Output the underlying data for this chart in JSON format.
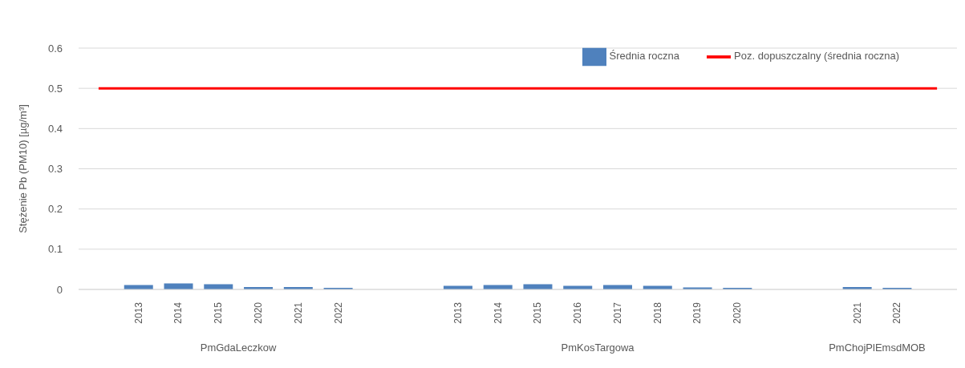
{
  "chart_data": {
    "type": "bar",
    "ylabel": "Stężenie Pb (PM10) [µg/m³]",
    "categories": [
      null,
      "2013",
      "2014",
      "2015",
      "2020",
      "2021",
      "2022",
      null,
      null,
      "2013",
      "2014",
      "2015",
      "2016",
      "2017",
      "2018",
      "2019",
      "2020",
      null,
      null,
      "2021",
      "2022",
      null
    ],
    "series": [
      {
        "name": "Średnia roczna",
        "color": "#4f81bd",
        "values": [
          null,
          0.011,
          0.015,
          0.013,
          0.006,
          0.006,
          0.004,
          null,
          null,
          0.009,
          0.011,
          0.013,
          0.009,
          0.011,
          0.009,
          0.005,
          0.004,
          null,
          null,
          0.006,
          0.004,
          null
        ]
      },
      {
        "name": "Poz. dopuszczalny (średnia roczna)",
        "type": "line",
        "color": "#ff0000",
        "values": [
          0.5,
          0.5,
          0.5,
          0.5,
          0.5,
          0.5,
          0.5,
          0.5,
          0.5,
          0.5,
          0.5,
          0.5,
          0.5,
          0.5,
          0.5,
          0.5,
          0.5,
          0.5,
          0.5,
          0.5,
          0.5,
          0.5
        ]
      }
    ],
    "annotations": [
      "PmGdaLeczkow",
      "PmKosTargowa",
      "PmChojPlEmsdMOB"
    ],
    "ylim": [
      0,
      0.6
    ],
    "yticks": [
      0,
      0.1,
      0.2,
      0.3,
      0.4,
      0.5,
      0.6
    ],
    "grid": "y",
    "legend": "top right",
    "marker": "none"
  }
}
